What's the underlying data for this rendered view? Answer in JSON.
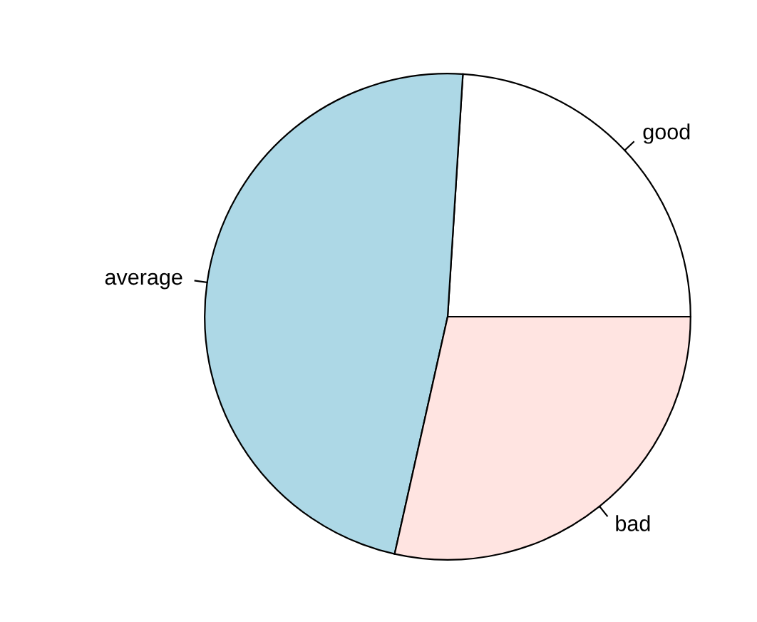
{
  "chart_data": {
    "type": "pie",
    "categories": [
      "good",
      "average",
      "bad"
    ],
    "values": [
      24,
      47.5,
      28.5
    ],
    "colors": [
      "#ffffff",
      "#add8e6",
      "#ffe4e1"
    ]
  }
}
